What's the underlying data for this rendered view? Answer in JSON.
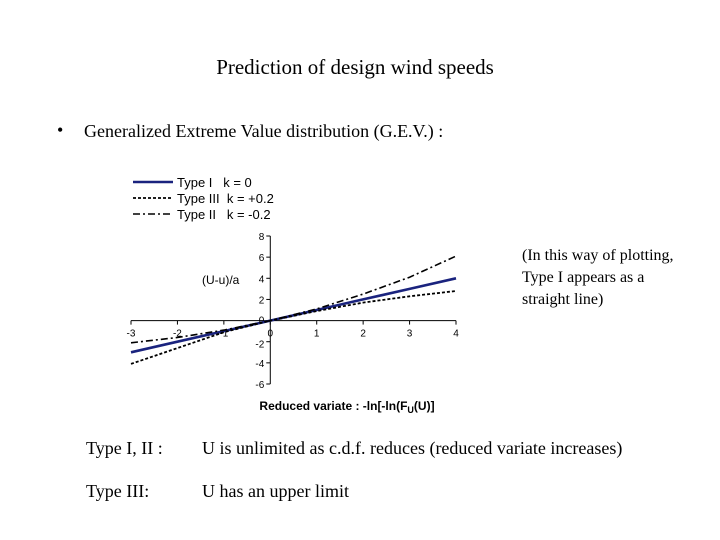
{
  "title": "Prediction of design wind speeds",
  "bullet": {
    "marker": "•",
    "text": "Generalized Extreme Value distribution (G.E.V.) :"
  },
  "note": "(In this way of plotting, Type I appears as a straight line)",
  "rows": [
    {
      "label": "Type I, II :",
      "text": "U is unlimited as c.d.f. reduces (reduced variate increases)"
    },
    {
      "label": "Type III:",
      "text": "U has an upper limit"
    }
  ],
  "chart_data": {
    "type": "line",
    "xlabel": "Reduced variate : -ln[-ln(F",
    "xlabel_sub": "U",
    "xlabel_end": "(U)]",
    "ylabel": "(U-u)/a",
    "xlim": [
      -3,
      4
    ],
    "ylim": [
      -6,
      8
    ],
    "xticks": [
      -3,
      -2,
      -1,
      0,
      1,
      2,
      3,
      4
    ],
    "yticks": [
      -6,
      -4,
      -2,
      0,
      2,
      4,
      6,
      8
    ],
    "grid": false,
    "legend_position": "top-left",
    "series": [
      {
        "name": "Type I   k = 0",
        "style": "solid",
        "color": "#1a237e",
        "x": [
          -3,
          -2,
          -1,
          0,
          1,
          2,
          3,
          4
        ],
        "y": [
          -3,
          -2,
          -1,
          0,
          1,
          2,
          3,
          4
        ]
      },
      {
        "name": "Type III  k = +0.2",
        "style": "dotted",
        "color": "#000000",
        "x": [
          -3,
          -2,
          -1,
          0,
          1,
          2,
          3,
          4
        ],
        "y": [
          -4.1,
          -2.6,
          -1.1,
          0,
          0.9,
          1.7,
          2.3,
          2.8
        ]
      },
      {
        "name": "Type II   k = -0.2",
        "style": "dashdot",
        "color": "#000000",
        "x": [
          -3,
          -2,
          -1,
          0,
          1,
          2,
          3,
          4
        ],
        "y": [
          -2.1,
          -1.6,
          -0.9,
          0,
          1.1,
          2.5,
          4.1,
          6.1
        ]
      }
    ]
  }
}
